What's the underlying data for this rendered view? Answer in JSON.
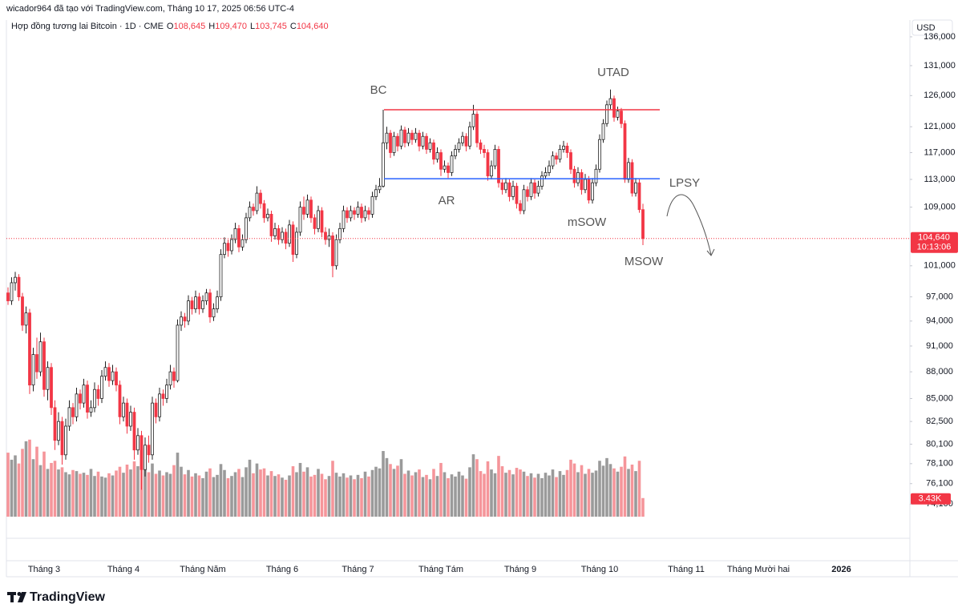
{
  "header": "wicador964 đã tạo với TradingView.com, Tháng 10 17, 2025 06:56 UTC-4",
  "brand": "TradingView",
  "chart_data": {
    "type": "candlestick",
    "currency": "USD",
    "log_scale": true,
    "legend": {
      "symbol": "Hợp đồng tương lai Bitcoin · 1D · CME",
      "keys": [
        "O",
        "H",
        "L",
        "C"
      ],
      "values": [
        108645,
        109470,
        103745,
        104640
      ],
      "value_labels": [
        "108,645",
        "109,470",
        "103,745",
        "104,640"
      ]
    },
    "annotations": [
      "BC",
      "AR",
      "UTAD",
      "mSOW",
      "LPSY",
      "MSOW"
    ],
    "up_color": "#ffffff",
    "up_border": "#222222",
    "down_color": "#f23645",
    "volume_up_color": "#9a9a9a",
    "volume_down_color": "#f5959a",
    "ylim": [
      72900,
      139000
    ],
    "yticks": [
      {
        "value": 136000,
        "label": "136,000"
      },
      {
        "value": 131000,
        "label": "131,000"
      },
      {
        "value": 126000,
        "label": "126,000"
      },
      {
        "value": 121000,
        "label": "121,000"
      },
      {
        "value": 117000,
        "label": "117,000"
      },
      {
        "value": 113000,
        "label": "113,000"
      },
      {
        "value": 109000,
        "label": "109,000"
      },
      {
        "value": 101000,
        "label": "101,000"
      },
      {
        "value": 97000,
        "label": "97,000"
      },
      {
        "value": 94000,
        "label": "94,000"
      },
      {
        "value": 91000,
        "label": "91,000"
      },
      {
        "value": 88000,
        "label": "88,000"
      },
      {
        "value": 85000,
        "label": "85,000"
      },
      {
        "value": 82500,
        "label": "82,500"
      },
      {
        "value": 80100,
        "label": "80,100"
      },
      {
        "value": 78100,
        "label": "78,100"
      },
      {
        "value": 76100,
        "label": "76,100"
      },
      {
        "value": 74100,
        "label": "74,100"
      }
    ],
    "xticks": [
      {
        "value": 10,
        "label": "Tháng 3"
      },
      {
        "value": 32,
        "label": "Tháng 4"
      },
      {
        "value": 54,
        "label": "Tháng Năm"
      },
      {
        "value": 76,
        "label": "Tháng 6"
      },
      {
        "value": 97,
        "label": "Tháng 7"
      },
      {
        "value": 120,
        "label": "Tháng Tám"
      },
      {
        "value": 142,
        "label": "Tháng 9"
      },
      {
        "value": 164,
        "label": "Tháng 10"
      },
      {
        "value": 188,
        "label": "Tháng 11"
      },
      {
        "value": 208,
        "label": "Tháng Mười hai"
      },
      {
        "value": 231,
        "label": "2026"
      }
    ],
    "levels": [
      {
        "price": 123700,
        "color": "#f23645"
      },
      {
        "price": 113100,
        "color": "#2962ff"
      }
    ],
    "last_price": 104640,
    "last_price_label": "104,640",
    "countdown": "10:13:06",
    "last_volume_label": "3.43K",
    "volume_lim": [
      0,
      22000
    ],
    "ohlc": [
      [
        97500,
        98200,
        96000,
        96500
      ],
      [
        96500,
        99500,
        96000,
        98800
      ],
      [
        98800,
        100200,
        97800,
        99500
      ],
      [
        99500,
        99900,
        96500,
        97000
      ],
      [
        97000,
        97500,
        92800,
        93500
      ],
      [
        93500,
        95800,
        92500,
        95000
      ],
      [
        95000,
        95500,
        85500,
        86500
      ],
      [
        86500,
        90800,
        85800,
        90000
      ],
      [
        90000,
        92000,
        87200,
        88000
      ],
      [
        88000,
        92600,
        87500,
        91500
      ],
      [
        91500,
        92000,
        85200,
        86000
      ],
      [
        86000,
        89200,
        84800,
        88500
      ],
      [
        88500,
        89000,
        83200,
        84000
      ],
      [
        84000,
        84800,
        79500,
        80500
      ],
      [
        80500,
        83500,
        80000,
        82500
      ],
      [
        82500,
        83000,
        78000,
        79000
      ],
      [
        79000,
        82800,
        78500,
        82000
      ],
      [
        82000,
        84800,
        81500,
        84000
      ],
      [
        84000,
        84500,
        82200,
        83000
      ],
      [
        83000,
        86200,
        82500,
        85500
      ],
      [
        85500,
        86000,
        83800,
        84500
      ],
      [
        84500,
        87200,
        84000,
        86500
      ],
      [
        86500,
        87000,
        82800,
        83500
      ],
      [
        83500,
        84800,
        83000,
        84000
      ],
      [
        84000,
        86800,
        83500,
        86000
      ],
      [
        86000,
        86500,
        84200,
        85000
      ],
      [
        85000,
        88200,
        84500,
        87500
      ],
      [
        87500,
        89200,
        87000,
        88500
      ],
      [
        88500,
        89000,
        86300,
        87000
      ],
      [
        87000,
        88800,
        86500,
        88000
      ],
      [
        88000,
        88500,
        85800,
        86500
      ],
      [
        86500,
        87000,
        82200,
        83000
      ],
      [
        83000,
        85200,
        82500,
        84500
      ],
      [
        84500,
        85000,
        81200,
        82000
      ],
      [
        82000,
        84200,
        81500,
        83500
      ],
      [
        83500,
        84000,
        78500,
        79500
      ],
      [
        79500,
        81800,
        79000,
        81000
      ],
      [
        81000,
        81500,
        75500,
        77500
      ],
      [
        77500,
        80800,
        76800,
        80000
      ],
      [
        80000,
        81000,
        78200,
        79000
      ],
      [
        79000,
        85200,
        78500,
        84500
      ],
      [
        84500,
        85000,
        82300,
        83000
      ],
      [
        83000,
        86200,
        82500,
        85500
      ],
      [
        85500,
        86000,
        84200,
        85000
      ],
      [
        85000,
        87200,
        84500,
        86500
      ],
      [
        86500,
        88800,
        86000,
        88000
      ],
      [
        88000,
        88500,
        86200,
        87000
      ],
      [
        87000,
        94200,
        86800,
        93500
      ],
      [
        93500,
        95200,
        92800,
        94500
      ],
      [
        94500,
        95000,
        93200,
        94000
      ],
      [
        94000,
        97200,
        93500,
        96500
      ],
      [
        96500,
        97000,
        94800,
        95500
      ],
      [
        95500,
        97800,
        95000,
        97000
      ],
      [
        97000,
        97500,
        94800,
        95500
      ],
      [
        95500,
        97200,
        95000,
        96500
      ],
      [
        96500,
        98000,
        96000,
        97500
      ],
      [
        97500,
        98000,
        93800,
        94500
      ],
      [
        94500,
        96200,
        94000,
        95500
      ],
      [
        95500,
        97800,
        95000,
        97000
      ],
      [
        97000,
        103200,
        96500,
        102500
      ],
      [
        102500,
        104800,
        102000,
        104000
      ],
      [
        104000,
        104500,
        102200,
        103000
      ],
      [
        103000,
        105200,
        102500,
        104500
      ],
      [
        104500,
        106800,
        104000,
        106000
      ],
      [
        106000,
        106500,
        102800,
        103500
      ],
      [
        103500,
        105200,
        103000,
        104500
      ],
      [
        104500,
        108200,
        104000,
        107500
      ],
      [
        107500,
        109800,
        107000,
        109000
      ],
      [
        109000,
        109500,
        107800,
        108500
      ],
      [
        108500,
        112000,
        108000,
        111000
      ],
      [
        111000,
        111500,
        108800,
        109500
      ],
      [
        109500,
        110000,
        106800,
        107500
      ],
      [
        107500,
        108800,
        107000,
        108000
      ],
      [
        108000,
        108500,
        104200,
        105000
      ],
      [
        105000,
        106800,
        104500,
        106000
      ],
      [
        106000,
        106500,
        103800,
        104500
      ],
      [
        104500,
        106200,
        104000,
        105500
      ],
      [
        105500,
        106000,
        103200,
        104000
      ],
      [
        104000,
        107200,
        103500,
        106500
      ],
      [
        106500,
        107000,
        101500,
        102500
      ],
      [
        102500,
        106200,
        102000,
        105500
      ],
      [
        105500,
        109800,
        105000,
        109000
      ],
      [
        109000,
        110500,
        107200,
        108000
      ],
      [
        108000,
        110800,
        107500,
        110000
      ],
      [
        110000,
        110500,
        106800,
        107500
      ],
      [
        107500,
        108000,
        105200,
        106000
      ],
      [
        106000,
        109200,
        105500,
        108500
      ],
      [
        108500,
        109000,
        104800,
        105500
      ],
      [
        105500,
        106200,
        103800,
        104500
      ],
      [
        104500,
        106000,
        103500,
        105000
      ],
      [
        105000,
        105500,
        99500,
        101000
      ],
      [
        101000,
        105200,
        100500,
        104500
      ],
      [
        104500,
        106800,
        104000,
        106000
      ],
      [
        106000,
        109200,
        105500,
        108500
      ],
      [
        108500,
        109000,
        106800,
        107500
      ],
      [
        107500,
        109200,
        107000,
        108500
      ],
      [
        108500,
        109000,
        107200,
        108000
      ],
      [
        108000,
        109800,
        107500,
        109000
      ],
      [
        109000,
        109500,
        106800,
        107500
      ],
      [
        107500,
        109200,
        107000,
        108500
      ],
      [
        108500,
        109000,
        107200,
        108000
      ],
      [
        108000,
        111200,
        107500,
        110500
      ],
      [
        110500,
        112200,
        110000,
        111500
      ],
      [
        111500,
        113200,
        111000,
        112000
      ],
      [
        112000,
        123700,
        111800,
        118500
      ],
      [
        118500,
        121000,
        117500,
        120000
      ],
      [
        120000,
        120500,
        116200,
        117000
      ],
      [
        117000,
        120200,
        116500,
        119500
      ],
      [
        119500,
        120000,
        117200,
        118000
      ],
      [
        118000,
        121200,
        117500,
        120500
      ],
      [
        120500,
        121000,
        117800,
        118500
      ],
      [
        118500,
        120800,
        118000,
        120000
      ],
      [
        120000,
        120500,
        118200,
        119000
      ],
      [
        119000,
        120800,
        118500,
        120000
      ],
      [
        120000,
        120500,
        117200,
        118000
      ],
      [
        118000,
        120200,
        117500,
        119500
      ],
      [
        119500,
        120000,
        116800,
        117500
      ],
      [
        117500,
        119200,
        117000,
        118500
      ],
      [
        118500,
        119000,
        115200,
        116000
      ],
      [
        116000,
        117800,
        115500,
        117000
      ],
      [
        117000,
        117500,
        113500,
        114500
      ],
      [
        114500,
        115800,
        114000,
        115000
      ],
      [
        115000,
        115500,
        113200,
        114000
      ],
      [
        114000,
        117200,
        113500,
        116500
      ],
      [
        116500,
        118200,
        116000,
        117500
      ],
      [
        117500,
        119200,
        117000,
        118500
      ],
      [
        118500,
        120200,
        118000,
        119500
      ],
      [
        119500,
        120000,
        117200,
        118000
      ],
      [
        118000,
        121800,
        117500,
        121000
      ],
      [
        121000,
        124500,
        120500,
        123000
      ],
      [
        123000,
        123500,
        117800,
        118500
      ],
      [
        118500,
        119000,
        116800,
        117500
      ],
      [
        117500,
        118200,
        116200,
        117000
      ],
      [
        117000,
        117500,
        112800,
        113500
      ],
      [
        113500,
        115800,
        113000,
        115000
      ],
      [
        115000,
        118200,
        114500,
        117500
      ],
      [
        117500,
        118000,
        111800,
        112500
      ],
      [
        112500,
        113000,
        110800,
        111500
      ],
      [
        111500,
        113200,
        111000,
        112500
      ],
      [
        112500,
        113000,
        109800,
        110500
      ],
      [
        110500,
        112800,
        110000,
        112000
      ],
      [
        112000,
        112500,
        108800,
        109500
      ],
      [
        109500,
        110000,
        108000,
        108500
      ],
      [
        108500,
        112200,
        108000,
        111500
      ],
      [
        111500,
        112000,
        109800,
        110500
      ],
      [
        110500,
        113200,
        110000,
        112500
      ],
      [
        112500,
        113000,
        110200,
        111000
      ],
      [
        111000,
        112800,
        110500,
        112000
      ],
      [
        112000,
        114200,
        111500,
        113500
      ],
      [
        113500,
        114800,
        113000,
        114000
      ],
      [
        114000,
        115800,
        113500,
        115000
      ],
      [
        115000,
        117200,
        114500,
        116500
      ],
      [
        116500,
        117000,
        115200,
        116000
      ],
      [
        116000,
        118200,
        115500,
        117500
      ],
      [
        117500,
        118800,
        117000,
        118000
      ],
      [
        118000,
        118500,
        116200,
        117000
      ],
      [
        117000,
        117500,
        113800,
        114500
      ],
      [
        114500,
        115000,
        111800,
        112500
      ],
      [
        112500,
        114800,
        112000,
        114000
      ],
      [
        114000,
        114500,
        110800,
        111500
      ],
      [
        111500,
        113800,
        111000,
        113000
      ],
      [
        113000,
        113500,
        109500,
        110000
      ],
      [
        110000,
        113200,
        109500,
        112500
      ],
      [
        112500,
        115200,
        112000,
        114500
      ],
      [
        114500,
        119800,
        114000,
        119000
      ],
      [
        119000,
        122200,
        118500,
        121500
      ],
      [
        121500,
        125200,
        121000,
        124500
      ],
      [
        124500,
        127000,
        123800,
        125500
      ],
      [
        125500,
        126000,
        121800,
        122500
      ],
      [
        122500,
        124200,
        122000,
        123500
      ],
      [
        123500,
        124000,
        120800,
        121500
      ],
      [
        121500,
        122000,
        112500,
        113000
      ],
      [
        113000,
        116200,
        112500,
        115500
      ],
      [
        115500,
        116000,
        110500,
        111000
      ],
      [
        111000,
        113200,
        110500,
        112500
      ],
      [
        112500,
        113000,
        108200,
        108645
      ],
      [
        108645,
        109470,
        103745,
        104640
      ]
    ],
    "volume": [
      11800,
      10500,
      11300,
      9800,
      12500,
      13900,
      14200,
      10600,
      12900,
      9500,
      12000,
      8800,
      9900,
      10300,
      8700,
      9100,
      8200,
      7800,
      8600,
      8400,
      7900,
      8100,
      7700,
      8800,
      7500,
      8300,
      7400,
      7200,
      8000,
      7600,
      8500,
      9200,
      8100,
      9600,
      8700,
      10200,
      9300,
      12600,
      8900,
      8200,
      9800,
      7900,
      8500,
      7600,
      8200,
      7900,
      9500,
      11800,
      9200,
      7800,
      8600,
      7400,
      8000,
      7600,
      7100,
      8300,
      8900,
      7300,
      7700,
      9700,
      8600,
      7100,
      7500,
      8200,
      8800,
      7300,
      9100,
      10500,
      8000,
      9800,
      8700,
      8900,
      7600,
      8400,
      7500,
      7800,
      7200,
      6800,
      7600,
      9300,
      8200,
      9900,
      8300,
      9100,
      7400,
      7700,
      8800,
      7900,
      6900,
      7500,
      10300,
      8100,
      7400,
      8000,
      7200,
      7600,
      6900,
      7700,
      7100,
      8300,
      7400,
      8600,
      9200,
      8900,
      12100,
      10800,
      9700,
      8800,
      9400,
      10600,
      7900,
      8500,
      7600,
      8200,
      8700,
      7300,
      7700,
      6900,
      8800,
      7500,
      9900,
      8200,
      7100,
      7800,
      7400,
      8300,
      7600,
      7000,
      9100,
      11500,
      10600,
      8400,
      7900,
      10200,
      8700,
      8000,
      11200,
      9300,
      8100,
      8600,
      7800,
      9000,
      8700,
      8300,
      7500,
      8000,
      7200,
      7900,
      7100,
      8100,
      7600,
      8700,
      7300,
      8400,
      7700,
      8600,
      10500,
      9800,
      8200,
      9500,
      7900,
      8800,
      8100,
      8500,
      10300,
      9400,
      10800,
      9700,
      8900,
      8300,
      9200,
      11100,
      8800,
      9600,
      8400,
      10300,
      3430
    ]
  }
}
